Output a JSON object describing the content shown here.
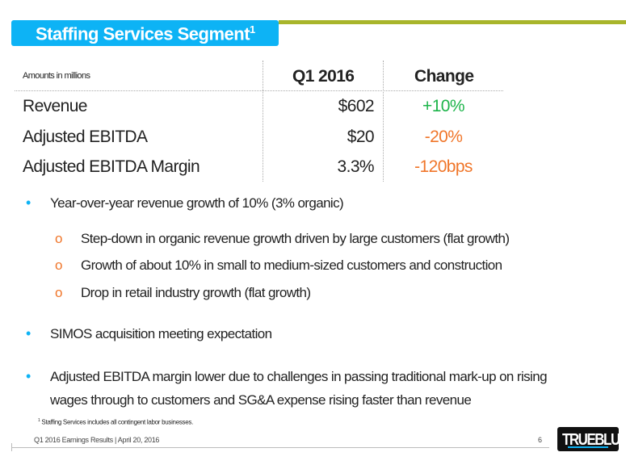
{
  "title": "Staffing Services Segment",
  "title_sup": "1",
  "table": {
    "note": "Amounts in millions",
    "headers": [
      "Q1 2016",
      "Change"
    ],
    "rows": [
      {
        "label": "Revenue",
        "value": "$602",
        "change": "+10%",
        "change_color": "#1db44a"
      },
      {
        "label": "Adjusted EBITDA",
        "value": "$20",
        "change": "-20%",
        "change_color": "#f0762a"
      },
      {
        "label": "Adjusted EBITDA Margin",
        "value": "3.3%",
        "change": "-120bps",
        "change_color": "#f0762a"
      }
    ]
  },
  "bullets": {
    "b1": "Year-over-year revenue growth of 10% (3% organic)",
    "sub": [
      "Step-down in organic revenue growth driven by large customers (flat growth)",
      "Growth of about 10% in small to medium-sized customers and construction",
      "Drop in retail industry growth (flat growth)"
    ],
    "b2": "SIMOS acquisition meeting expectation",
    "b3_line1": "Adjusted EBITDA margin lower due to challenges in passing traditional mark-up on rising",
    "b3_line2": "wages through to customers and SG&A expense rising faster than revenue"
  },
  "footnote_num": "1",
  "footnote": "Staffing Services includes all contingent labor businesses.",
  "footer": "Q1 2016 Earnings Results | April 20, 2016",
  "page_number": "6",
  "logo": "TRUEBLUE"
}
